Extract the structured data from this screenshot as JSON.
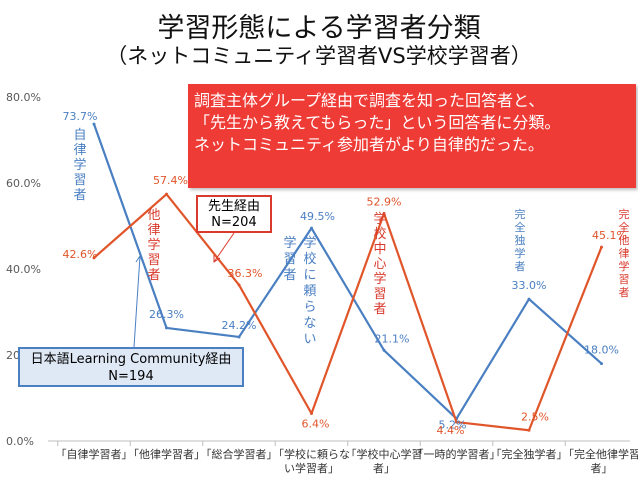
{
  "title": "学習形態による学習者分類",
  "subtitle": "（ネットコミュニティ学習者VS学校学習者）",
  "callout": "調査主体グループ経由で調査を知った回答者と、\n「先生から教えてもらった」という回答者に分類。\n  ネットコミュニティ参加者がより自律的だった。",
  "teacher_box": "先生経由\nN=204",
  "jlc_box": "日本語Learning Community経由\nN=194",
  "annotations": {
    "autonomous": "自律学習者",
    "heteronomous": "他律学習者",
    "not_school": "学校に頼らない",
    "school_centered": "学校中心学習者",
    "fully_independent": "完全独学者",
    "fully_heteronomous": "完全他律学習者"
  },
  "colors": {
    "blue": "#4a7fc2",
    "red": "#e0552a",
    "callout": "#ef3b36"
  },
  "chart_data": {
    "type": "line",
    "categories": [
      "「自律学習者」",
      "「他律学習者」",
      "「総合学習者」",
      "「学校に頼らない学習者」",
      "「学校中心学習者」",
      "「一時的学習者」",
      "「完全独学者」",
      "「完全他律学習者」"
    ],
    "y_ticks": [
      "0.0%",
      "20.0%",
      "40.0%",
      "60.0%",
      "80.0%"
    ],
    "ylim": [
      0,
      80
    ],
    "grid": false,
    "series": [
      {
        "name": "日本語Learning Community経由",
        "color": "#4a7fc2",
        "values": [
          73.7,
          26.3,
          24.2,
          49.5,
          21.1,
          5.2,
          33.0,
          18.0
        ],
        "labels": [
          "73.7%",
          "26.3%",
          "24.2%",
          "49.5%",
          "21.1%",
          "5.2%",
          "33.0%",
          "18.0%"
        ]
      },
      {
        "name": "先生経由",
        "color": "#e0552a",
        "values": [
          42.6,
          57.4,
          36.3,
          6.4,
          52.9,
          4.4,
          2.5,
          45.1
        ],
        "labels": [
          "42.6%",
          "57.4%",
          "36.3%",
          "6.4%",
          "52.9%",
          "4.4%",
          "2.5%",
          "45.1%"
        ]
      }
    ]
  }
}
